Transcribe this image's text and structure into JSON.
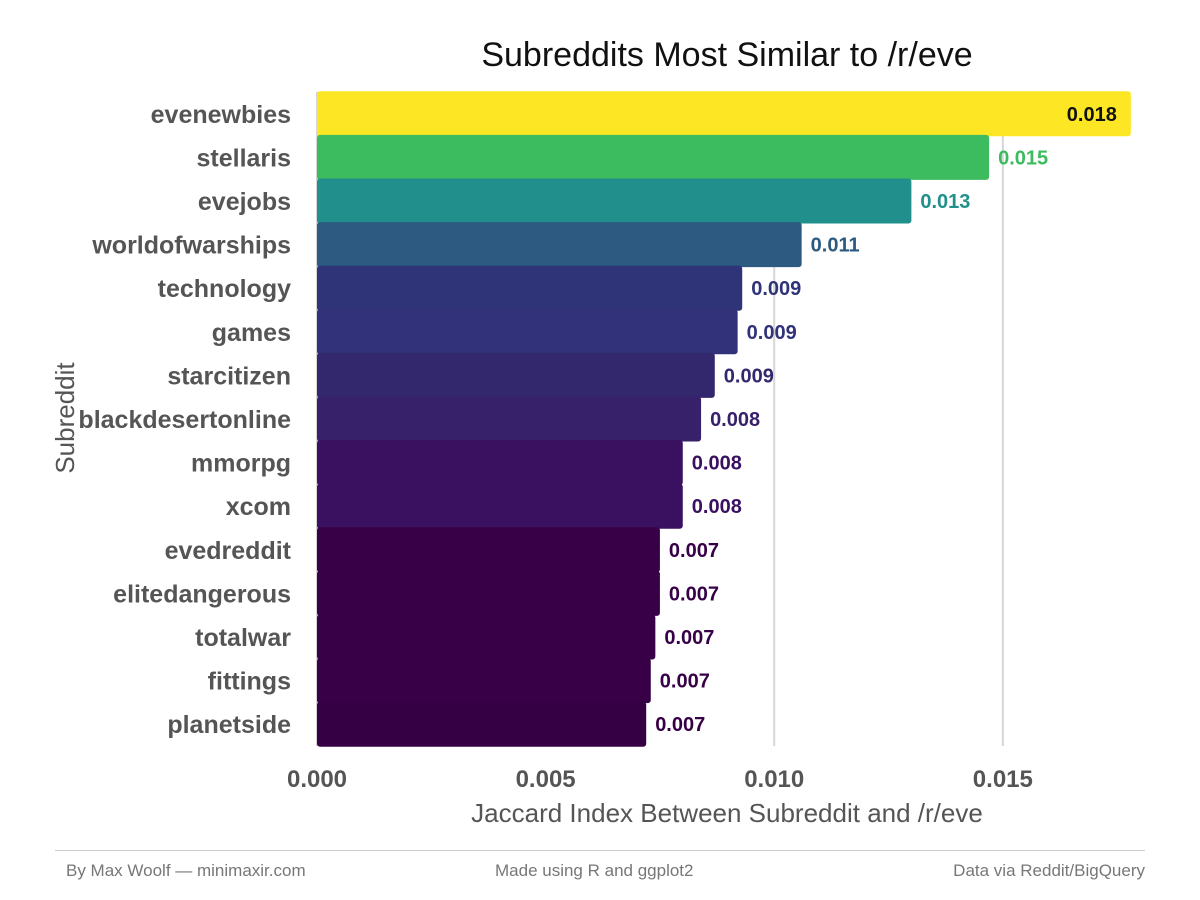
{
  "chart_data": {
    "type": "bar",
    "orientation": "horizontal",
    "title": "Subreddits Most Similar to /r/eve",
    "xlabel": "Jaccard Index Between Subreddit and /r/eve",
    "ylabel": "Subreddit",
    "xlim": [
      0,
      0.018
    ],
    "x_ticks": [
      "0.000",
      "0.005",
      "0.010",
      "0.015"
    ],
    "grid": "vertical major",
    "legend": "none",
    "categories": [
      "evenewbies",
      "stellaris",
      "evejobs",
      "worldofwarships",
      "technology",
      "games",
      "starcitizen",
      "blackdesertonline",
      "mmorpg",
      "xcom",
      "evedreddit",
      "elitedangerous",
      "totalwar",
      "fittings",
      "planetside"
    ],
    "values": [
      0.0178,
      0.0147,
      0.013,
      0.0106,
      0.0093,
      0.0092,
      0.0087,
      0.0084,
      0.008,
      0.008,
      0.0075,
      0.0075,
      0.0074,
      0.0073,
      0.0072
    ],
    "value_labels": [
      "0.018",
      "0.015",
      "0.013",
      "0.011",
      "0.009",
      "0.009",
      "0.009",
      "0.008",
      "0.008",
      "0.008",
      "0.007",
      "0.007",
      "0.007",
      "0.007",
      "0.007"
    ],
    "colors": [
      "#fde725",
      "#3dbb5f",
      "#21908c",
      "#2c5a80",
      "#2f3377",
      "#31327a",
      "#33286d",
      "#37216a",
      "#3a1160",
      "#3a1160",
      "#370047",
      "#370047",
      "#370047",
      "#370047",
      "#360044"
    ],
    "value_label_colors": [
      "#111111",
      "#3dbb5f",
      "#21908c",
      "#2c5a80",
      "#2f3377",
      "#31327a",
      "#33286d",
      "#37216a",
      "#3a1160",
      "#3a1160",
      "#370047",
      "#370047",
      "#370047",
      "#370047",
      "#360044"
    ]
  },
  "footer": {
    "left": "By Max Woolf — minimaxir.com",
    "center": "Made using R and ggplot2",
    "right": "Data via Reddit/BigQuery"
  }
}
